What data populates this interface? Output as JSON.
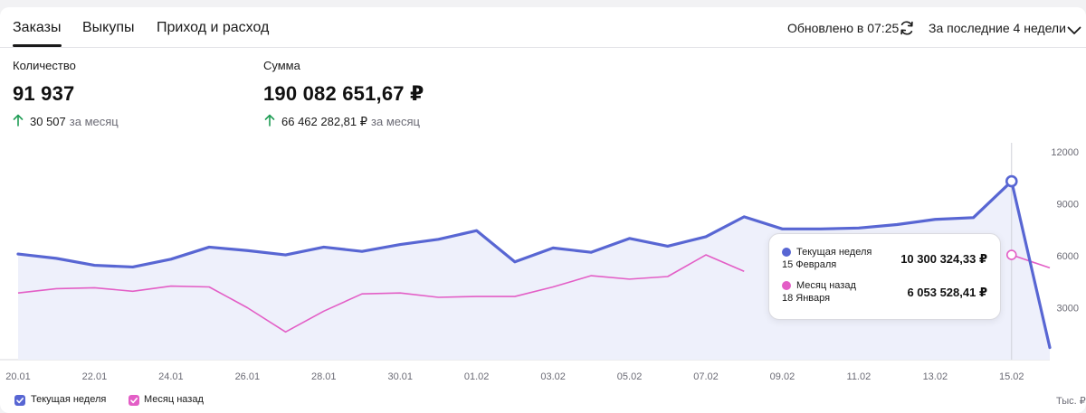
{
  "tabs": [
    {
      "label": "Заказы",
      "active": true
    },
    {
      "label": "Выкупы",
      "active": false
    },
    {
      "label": "Приход и расход",
      "active": false
    }
  ],
  "header": {
    "updated": "Обновлено в 07:25",
    "period": "За последние 4 недели"
  },
  "metrics": {
    "count": {
      "label": "Количество",
      "value": "91 937",
      "delta": "30 507",
      "delta_period": "за месяц"
    },
    "sum": {
      "label": "Сумма",
      "value": "190 082 651,67 ₽",
      "delta": "66 462 282,81 ₽",
      "delta_period": "за месяц"
    }
  },
  "tooltip": {
    "current": {
      "name": "Текущая неделя",
      "date": "15 Февраля",
      "value": "10 300 324,33 ₽"
    },
    "previous": {
      "name": "Месяц назад",
      "date": "18 Января",
      "value": "6 053 528,41 ₽"
    }
  },
  "legend": {
    "current": "Текущая неделя",
    "previous": "Месяц назад"
  },
  "unit_label": "Тыс. ₽",
  "colors": {
    "current": "#5866d3",
    "previous": "#e35ec6",
    "positive": "#1f9d55",
    "area": "#eef0fb"
  },
  "chart_data": {
    "type": "line",
    "x": [
      "20.01",
      "21.01",
      "22.01",
      "23.01",
      "24.01",
      "25.01",
      "26.01",
      "27.01",
      "28.01",
      "29.01",
      "30.01",
      "31.01",
      "01.02",
      "02.02",
      "03.02",
      "04.02",
      "05.02",
      "06.02",
      "07.02",
      "08.02",
      "09.02",
      "10.02",
      "11.02",
      "12.02",
      "13.02",
      "14.02",
      "15.02",
      "16.02"
    ],
    "x_tick_labels": [
      "20.01",
      "22.01",
      "24.01",
      "26.01",
      "28.01",
      "30.01",
      "01.02",
      "03.02",
      "05.02",
      "07.02",
      "09.02",
      "11.02",
      "13.02",
      "15.02"
    ],
    "series": [
      {
        "name": "Текущая неделя",
        "values": [
          6100,
          5850,
          5450,
          5350,
          5800,
          6500,
          6300,
          6050,
          6500,
          6250,
          6650,
          6950,
          7450,
          5650,
          6450,
          6200,
          7000,
          6550,
          7100,
          8250,
          7550,
          7550,
          7600,
          7800,
          8100,
          8200,
          10300,
          700
        ]
      },
      {
        "name": "Месяц назад",
        "values": [
          3850,
          4100,
          4150,
          3950,
          4250,
          4200,
          3000,
          1600,
          2800,
          3800,
          3850,
          3600,
          3650,
          3650,
          4200,
          4850,
          4650,
          4800,
          6050,
          5100,
          null,
          null,
          null,
          null,
          null,
          null,
          6050,
          5300
        ]
      }
    ],
    "ylim": [
      0,
      12000
    ],
    "y_ticks": [
      3000,
      6000,
      9000,
      12000
    ],
    "grid": false,
    "legend_position": "bottom-left"
  }
}
